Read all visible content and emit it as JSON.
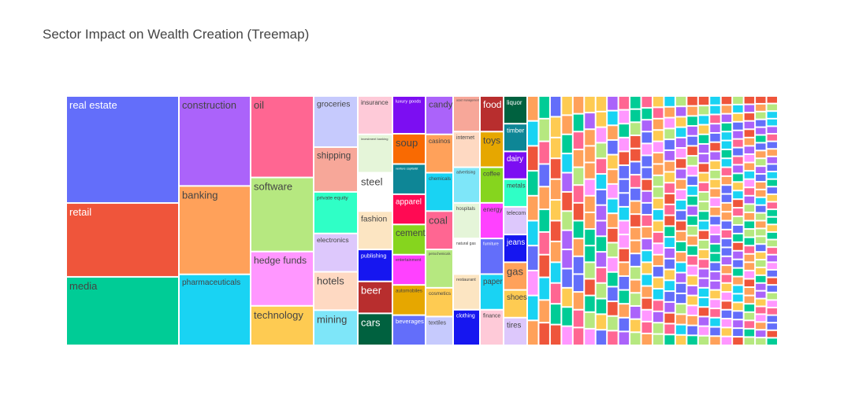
{
  "chart_data": {
    "type": "treemap",
    "title": "Sector Impact on Wealth Creation (Treemap)",
    "palette": [
      "#636EFA",
      "#EF553B",
      "#00CC96",
      "#AB63FA",
      "#FFA15A",
      "#19D3F3",
      "#FF6692",
      "#B6E880",
      "#FF97FF",
      "#FECB52"
    ],
    "labeled_sectors": [
      {
        "name": "real estate",
        "value": 100,
        "color": "#636EFA"
      },
      {
        "name": "retail",
        "value": 69,
        "color": "#EF553B"
      },
      {
        "name": "media",
        "value": 64,
        "color": "#00CC96"
      },
      {
        "name": "construction",
        "value": 57,
        "color": "#AB63FA"
      },
      {
        "name": "banking",
        "value": 56,
        "color": "#FFA15A"
      },
      {
        "name": "pharmaceuticals",
        "value": 45,
        "color": "#19D3F3"
      },
      {
        "name": "oil",
        "value": 33,
        "color": "#FF6692"
      },
      {
        "name": "software",
        "value": 30,
        "color": "#B6E880"
      },
      {
        "name": "hedge funds",
        "value": 22,
        "color": "#FF97FF"
      },
      {
        "name": "technology",
        "value": 16,
        "color": "#FECB52"
      },
      {
        "name": "groceries",
        "value": 16,
        "color": "#C6CAFD"
      },
      {
        "name": "shipping",
        "value": 14,
        "color": "#F7A799"
      },
      {
        "name": "private equity",
        "value": 13,
        "color": "#2FFFC6"
      },
      {
        "name": "electronics",
        "value": 12,
        "color": "#DDC8FC"
      },
      {
        "name": "hotels",
        "value": 12,
        "color": "#FED9C2"
      },
      {
        "name": "mining",
        "value": 11,
        "color": "#7EE6F9"
      },
      {
        "name": "insurance",
        "value": 6,
        "color": "#FECAD8"
      },
      {
        "name": "investment banking",
        "value": 6,
        "color": "#E5F5D9"
      },
      {
        "name": "steel",
        "value": 6,
        "color": "#FFFFFF"
      },
      {
        "name": "fashion",
        "value": 6,
        "color": "#FCE5C2"
      },
      {
        "name": "publishing",
        "value": 5,
        "color": "#1616F0"
      },
      {
        "name": "beer",
        "value": 5,
        "color": "#B82E2E"
      },
      {
        "name": "cars",
        "value": 5,
        "color": "#00613F"
      },
      {
        "name": "luxury goods",
        "value": 5,
        "color": "#7C0EF2"
      },
      {
        "name": "soup",
        "value": 4,
        "color": "#F96A02"
      },
      {
        "name": "venture capitalist",
        "value": 4,
        "color": "#0E8696"
      },
      {
        "name": "apparel",
        "value": 4,
        "color": "#FF0A53"
      },
      {
        "name": "cement",
        "value": 4,
        "color": "#86D51E"
      },
      {
        "name": "entertainment",
        "value": 4,
        "color": "#FF41FF"
      },
      {
        "name": "automobiles",
        "value": 4,
        "color": "#E6A700"
      },
      {
        "name": "beverages",
        "value": 4,
        "color": "#636EFA"
      },
      {
        "name": "candy",
        "value": 4,
        "color": "#AB63FA"
      },
      {
        "name": "casinos",
        "value": 4,
        "color": "#FFA15A"
      },
      {
        "name": "chemicals",
        "value": 4,
        "color": "#19D3F3"
      },
      {
        "name": "coal",
        "value": 4,
        "color": "#FF6692"
      },
      {
        "name": "petrochemicals",
        "value": 4,
        "color": "#B6E880"
      },
      {
        "name": "cosmetics",
        "value": 3,
        "color": "#FECB52"
      },
      {
        "name": "textiles",
        "value": 3,
        "color": "#C6CAFD"
      },
      {
        "name": "asset management",
        "value": 3,
        "color": "#F7A799"
      },
      {
        "name": "internet",
        "value": 3,
        "color": "#FED9C2"
      },
      {
        "name": "advertising",
        "value": 3,
        "color": "#7EE6F9"
      },
      {
        "name": "hospitals",
        "value": 3,
        "color": "#E5F5D9"
      },
      {
        "name": "natural gas",
        "value": 3,
        "color": "#FFFFFF"
      },
      {
        "name": "restaurant",
        "value": 3,
        "color": "#FCE5C2"
      },
      {
        "name": "clothing",
        "value": 3,
        "color": "#1616F0"
      },
      {
        "name": "food",
        "value": 3,
        "color": "#B82E2E"
      },
      {
        "name": "toys",
        "value": 3,
        "color": "#E6A700"
      },
      {
        "name": "coffee",
        "value": 3,
        "color": "#86D51E"
      },
      {
        "name": "energy",
        "value": 3,
        "color": "#FF41FF"
      },
      {
        "name": "furniture",
        "value": 3,
        "color": "#636EFA"
      },
      {
        "name": "paper",
        "value": 3,
        "color": "#19D3F3"
      },
      {
        "name": "finance",
        "value": 3,
        "color": "#FECAD8"
      },
      {
        "name": "liquor",
        "value": 2,
        "color": "#00613F"
      },
      {
        "name": "timber",
        "value": 2,
        "color": "#0E8696"
      },
      {
        "name": "dairy",
        "value": 2,
        "color": "#7C0EF2"
      },
      {
        "name": "metals",
        "value": 2,
        "color": "#2FFFC6"
      },
      {
        "name": "telecom",
        "value": 2,
        "color": "#DDC8FC"
      },
      {
        "name": "jeans",
        "value": 2,
        "color": "#1616F0"
      },
      {
        "name": "gas",
        "value": 2,
        "color": "#FFA15A"
      },
      {
        "name": "shoes",
        "value": 2,
        "color": "#FECB52"
      },
      {
        "name": "tires",
        "value": 2,
        "color": "#DDC8FC"
      }
    ],
    "small_sectors_unlabeled": true
  }
}
